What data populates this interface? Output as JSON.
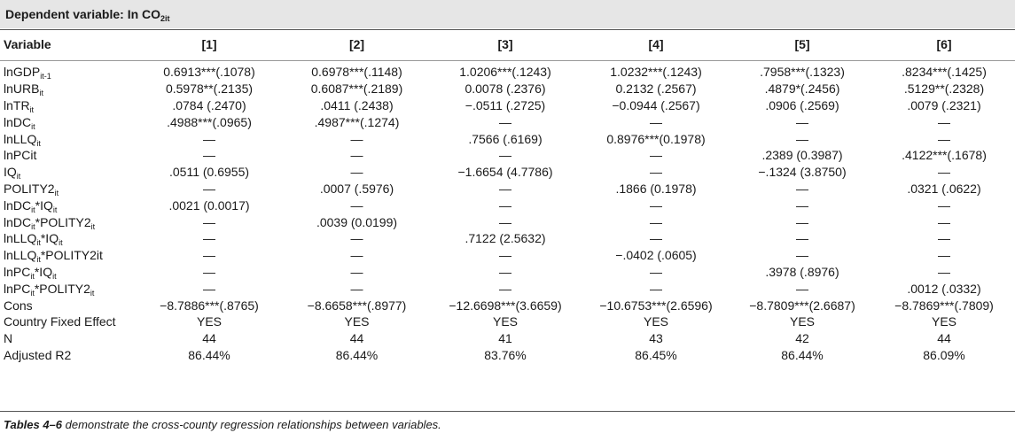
{
  "header": {
    "title": "Dependent variable: In CO",
    "title_sub": "2it"
  },
  "columns": {
    "variable": "Variable",
    "c1": "[1]",
    "c2": "[2]",
    "c3": "[3]",
    "c4": "[4]",
    "c5": "[5]",
    "c6": "[6]"
  },
  "rows": [
    {
      "base": "lnGDP",
      "sub": "it-1",
      "tail": "",
      "vals": [
        "0.6913***(.1078)",
        "0.6978***(.1148)",
        "1.0206***(.1243)",
        "1.0232***(.1243)",
        ".7958***(.1323)",
        ".8234***(.1425)"
      ]
    },
    {
      "base": "lnURB",
      "sub": "it",
      "tail": "",
      "vals": [
        "0.5978**(.2135)",
        "0.6087***(.2189)",
        "0.0078 (.2376)",
        "0.2132 (.2567)",
        ".4879*(.2456)",
        ".5129**(.2328)"
      ]
    },
    {
      "base": "lnTR",
      "sub": "it",
      "tail": "",
      "vals": [
        ".0784 (.2470)",
        ".0411 (.2438)",
        "−.0511 (.2725)",
        "−0.0944 (.2567)",
        ".0906 (.2569)",
        ".0079 (.2321)"
      ]
    },
    {
      "base": "lnDC",
      "sub": "it",
      "tail": "",
      "vals": [
        ".4988***(.0965)",
        ".4987***(.1274)",
        "—",
        "—",
        "—",
        "—"
      ]
    },
    {
      "base": "lnLLQ",
      "sub": "it",
      "tail": "",
      "vals": [
        "—",
        "—",
        ".7566 (.6169)",
        "0.8976***(0.1978)",
        "—",
        "—"
      ]
    },
    {
      "base": "lnPCit",
      "sub": "",
      "tail": "",
      "vals": [
        "—",
        "—",
        "—",
        "—",
        ".2389 (0.3987)",
        ".4122***(.1678)"
      ]
    },
    {
      "base": "IQ",
      "sub": "it",
      "tail": "",
      "vals": [
        ".0511 (0.6955)",
        "—",
        "−1.6654 (4.7786)",
        "—",
        "−.1324 (3.8750)",
        "—"
      ]
    },
    {
      "base": "POLITY2",
      "sub": "it",
      "tail": "",
      "vals": [
        "—",
        ".0007 (.5976)",
        "—",
        ".1866 (0.1978)",
        "—",
        ".0321 (.0622)"
      ]
    },
    {
      "base": "lnDC",
      "sub": "it",
      "tail": "*IQ",
      "sub2": "it",
      "vals": [
        ".0021 (0.0017)",
        "—",
        "—",
        "—",
        "—",
        "—"
      ]
    },
    {
      "base": "lnDC",
      "sub": "it",
      "tail": "*POLITY2",
      "sub2": "it",
      "vals": [
        "—",
        ".0039 (0.0199)",
        "—",
        "—",
        "—",
        "—"
      ]
    },
    {
      "base": "lnLLQ",
      "sub": "it",
      "tail": "*IQ",
      "sub2": "it",
      "vals": [
        "—",
        "—",
        ".7122 (2.5632)",
        "—",
        "—",
        "—"
      ]
    },
    {
      "base": "lnLLQ",
      "sub": "it",
      "tail": "*POLITY2it",
      "sub2": "",
      "vals": [
        "—",
        "—",
        "—",
        "−.0402 (.0605)",
        "—",
        "—"
      ]
    },
    {
      "base": "lnPC",
      "sub": "it",
      "tail": "*IQ",
      "sub2": "it",
      "vals": [
        "—",
        "—",
        "—",
        "—",
        ".3978 (.8976)",
        "—"
      ]
    },
    {
      "base": "lnPC",
      "sub": "it",
      "tail": "*POLITY2",
      "sub2": "it",
      "vals": [
        "—",
        "—",
        "—",
        "—",
        "—",
        ".0012 (.0332)"
      ]
    },
    {
      "base": "Cons",
      "sub": "",
      "tail": "",
      "vals": [
        "−8.7886***(.8765)",
        "−8.6658***(.8977)",
        "−12.6698***(3.6659)",
        "−10.6753***(2.6596)",
        "−8.7809***(2.6687)",
        "−8.7869***(.7809)"
      ]
    },
    {
      "base": "Country Fixed Effect",
      "sub": "",
      "tail": "",
      "vals": [
        "YES",
        "YES",
        "YES",
        "YES",
        "YES",
        "YES"
      ]
    },
    {
      "base": "N",
      "sub": "",
      "tail": "",
      "vals": [
        "44",
        "44",
        "41",
        "43",
        "42",
        "44"
      ]
    },
    {
      "base": "Adjusted R2",
      "sub": "",
      "tail": "",
      "vals": [
        "86.44%",
        "86.44%",
        "83.76%",
        "86.45%",
        "86.44%",
        "86.09%"
      ]
    }
  ],
  "caption": {
    "bold": "Tables 4–6",
    "rest": " demonstrate the cross-county regression relationships between variables."
  }
}
